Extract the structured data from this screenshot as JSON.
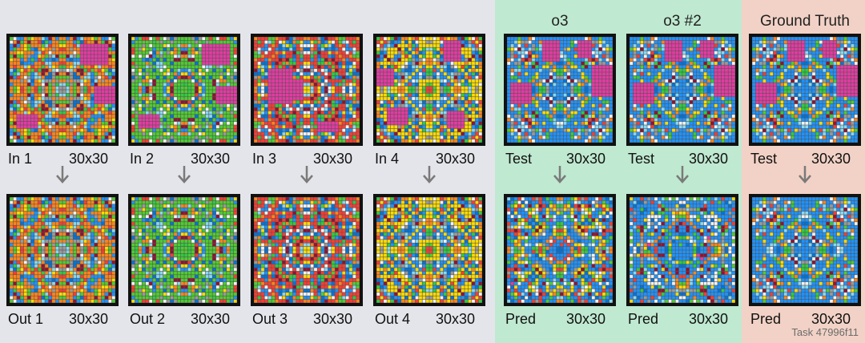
{
  "task_id": "Task 47996f11",
  "palette": [
    "#f2f2f2",
    "#1e93ff",
    "#f93c31",
    "#4fcc30",
    "#ffdc00",
    "#999999",
    "#e53aa3",
    "#ff851b",
    "#87d8f1",
    "#921231",
    "#0074d9",
    "#2ecc40"
  ],
  "columns": [
    {
      "id": "ex1",
      "title": "",
      "top_label": "In 1",
      "top_size": "30x30",
      "bottom_label": "Out 1",
      "bottom_size": "30x30",
      "seed": 11,
      "dominant": "#ff851b",
      "mask": "pink-blocks"
    },
    {
      "id": "ex2",
      "title": "",
      "top_label": "In 2",
      "top_size": "30x30",
      "bottom_label": "Out 2",
      "bottom_size": "30x30",
      "seed": 23,
      "dominant": "#4fcc30",
      "mask": "pink-blocks"
    },
    {
      "id": "ex3",
      "title": "",
      "top_label": "In 3",
      "top_size": "30x30",
      "bottom_label": "Out 3",
      "bottom_size": "30x30",
      "seed": 37,
      "dominant": "#f93c31",
      "mask": "pink-big"
    },
    {
      "id": "ex4",
      "title": "",
      "top_label": "In 4",
      "top_size": "30x30",
      "bottom_label": "Out 4",
      "bottom_size": "30x30",
      "seed": 41,
      "dominant": "#ffdc00",
      "mask": "pink-corners"
    },
    {
      "id": "o3a",
      "title": "o3",
      "top_label": "Test",
      "top_size": "30x30",
      "bottom_label": "Pred",
      "bottom_size": "30x30",
      "seed": 53,
      "dominant": "#1e93ff",
      "mask": "pink-test"
    },
    {
      "id": "o3b",
      "title": "o3 #2",
      "top_label": "Test",
      "top_size": "30x30",
      "bottom_label": "Pred",
      "bottom_size": "30x30",
      "seed": 53,
      "dominant": "#1e93ff",
      "mask": "pink-test"
    },
    {
      "id": "gt",
      "title": "Ground Truth",
      "top_label": "Test",
      "top_size": "30x30",
      "bottom_label": "Pred",
      "bottom_size": "30x30",
      "seed": 53,
      "dominant": "#1e93ff",
      "mask": "pink-test"
    }
  ]
}
